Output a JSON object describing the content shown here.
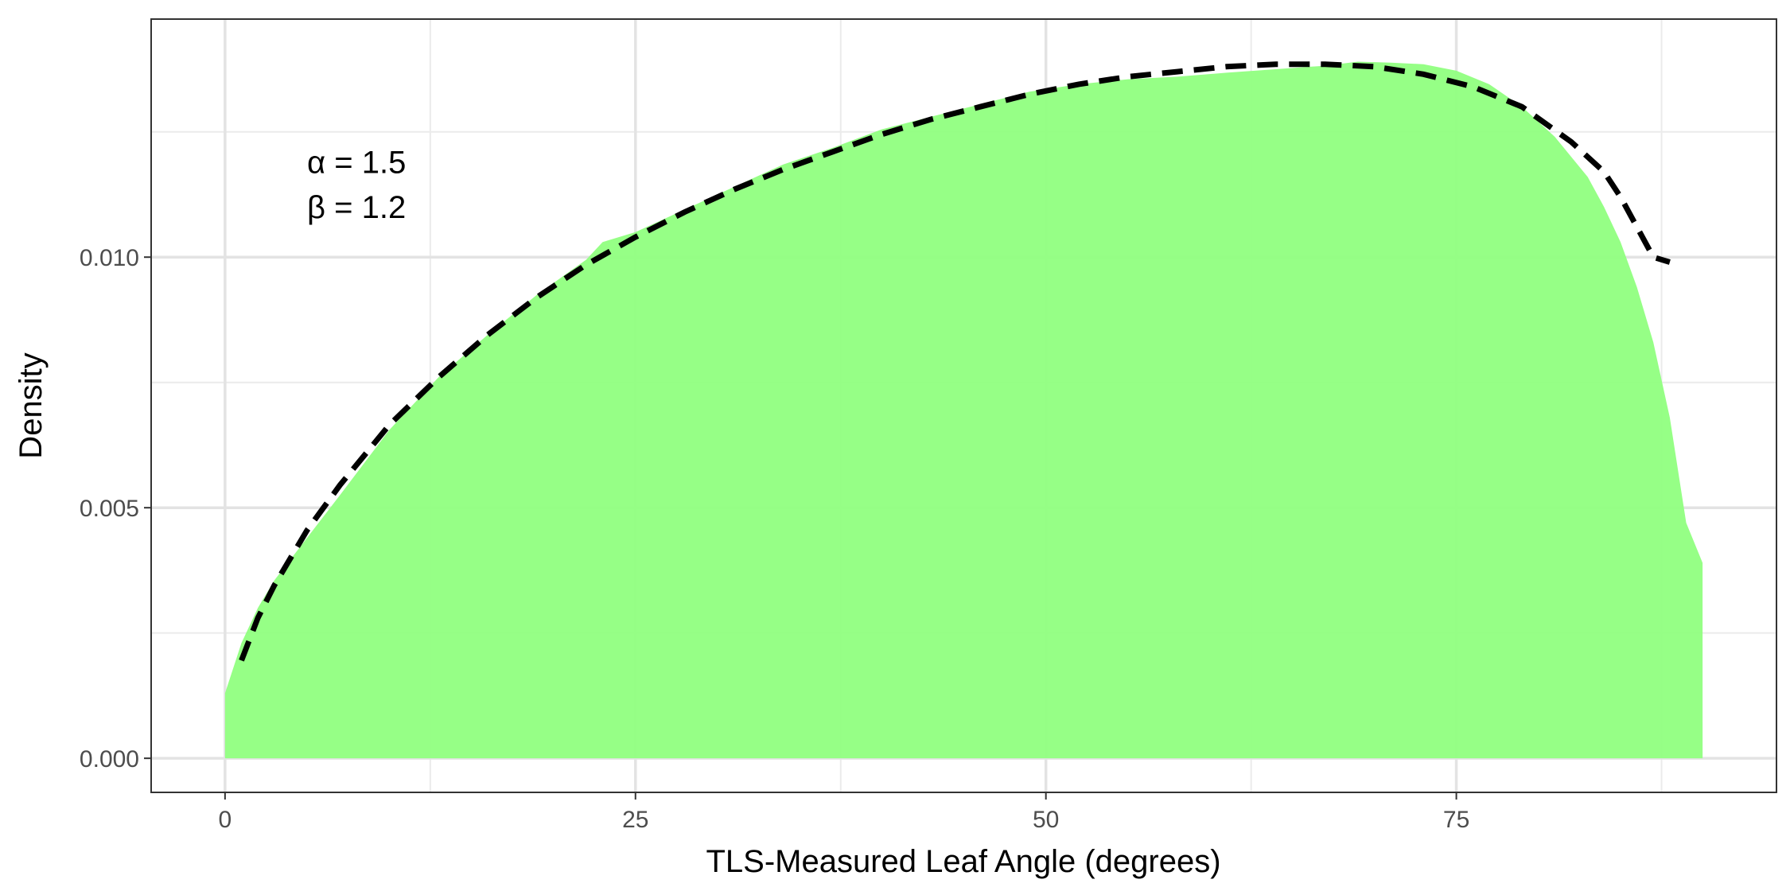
{
  "chart_data": {
    "type": "area",
    "xlabel": "TLS-Measured Leaf Angle (degrees)",
    "ylabel": "Density",
    "xlim": [
      -4.5,
      94.5
    ],
    "ylim": [
      -0.00068,
      0.01475
    ],
    "x_ticks": [
      0,
      25,
      50,
      75
    ],
    "x_tick_labels": [
      "0",
      "25",
      "50",
      "75"
    ],
    "x_minor_ticks": [
      12.5,
      37.5,
      62.5,
      87.5
    ],
    "y_ticks": [
      0.0,
      0.005,
      0.01
    ],
    "y_tick_labels": [
      "0.000",
      "0.005",
      "0.010"
    ],
    "y_minor_ticks": [
      0.0025,
      0.0075,
      0.0125
    ],
    "grid": true,
    "legend": "none",
    "series": [
      {
        "kind": "density-area",
        "color": "#90FF80",
        "x": [
          0,
          1,
          2,
          3,
          5,
          7,
          10,
          13,
          16,
          19,
          22,
          23,
          25,
          28,
          31,
          34,
          37,
          40,
          43,
          46,
          49,
          52,
          55,
          58,
          61,
          64,
          67,
          69,
          71,
          73,
          75,
          77,
          79,
          81,
          83,
          84,
          85,
          86,
          87,
          88,
          89,
          90
        ],
        "y": [
          0.0013,
          0.0023,
          0.003,
          0.00355,
          0.0044,
          0.00525,
          0.00655,
          0.0076,
          0.00845,
          0.00925,
          0.00995,
          0.0103,
          0.0105,
          0.01095,
          0.0114,
          0.01185,
          0.01218,
          0.01255,
          0.0128,
          0.01305,
          0.0133,
          0.01345,
          0.01355,
          0.0136,
          0.01368,
          0.01375,
          0.01382,
          0.0139,
          0.01388,
          0.01385,
          0.01372,
          0.01345,
          0.013,
          0.0124,
          0.0116,
          0.011,
          0.0103,
          0.0094,
          0.0083,
          0.0068,
          0.0047,
          0.0039
        ]
      },
      {
        "kind": "fitted-curve",
        "color": "#000000",
        "line": "dashed",
        "x": [
          1,
          2,
          3,
          5,
          7,
          10,
          13,
          16,
          19,
          22,
          25,
          28,
          31,
          34,
          37,
          40,
          43,
          46,
          49,
          52,
          55,
          58,
          61,
          64,
          67,
          70,
          73,
          76,
          79,
          82,
          84,
          85,
          86,
          87,
          88
        ],
        "y": [
          0.00195,
          0.0028,
          0.00345,
          0.00455,
          0.00545,
          0.00665,
          0.0076,
          0.00845,
          0.0092,
          0.00985,
          0.0104,
          0.0109,
          0.01135,
          0.01175,
          0.0121,
          0.01245,
          0.01275,
          0.013,
          0.01325,
          0.01345,
          0.0136,
          0.0137,
          0.0138,
          0.01385,
          0.01385,
          0.0138,
          0.01365,
          0.0134,
          0.013,
          0.0123,
          0.0117,
          0.0112,
          0.0106,
          0.01,
          0.0099
        ]
      }
    ],
    "annotations": [
      {
        "text": "α = 1.5",
        "x": 5,
        "y": 0.0119
      },
      {
        "text": "β = 1.2",
        "x": 5,
        "y": 0.011
      }
    ]
  }
}
